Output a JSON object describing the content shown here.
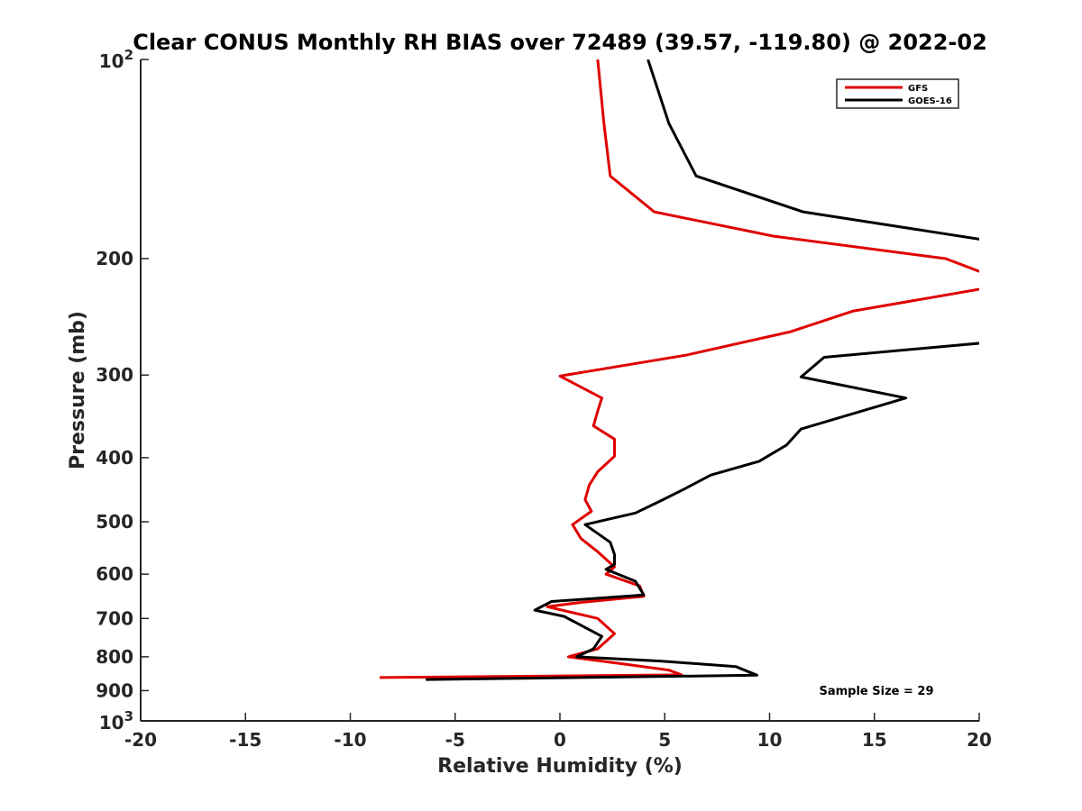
{
  "chart_data": {
    "type": "line",
    "title": "Clear CONUS Monthly RH BIAS over 72489 (39.57, -119.80) @ 2022-02",
    "xlabel": "Relative Humidity (%)",
    "ylabel": "Pressure (mb)",
    "xlim": [
      -20,
      20
    ],
    "ylim": [
      100,
      1000
    ],
    "y_scale": "log",
    "y_reversed": true,
    "x_ticks": [
      -20,
      -15,
      -10,
      -5,
      0,
      5,
      10,
      15,
      20
    ],
    "x_tick_labels": [
      "-20",
      "-15",
      "-10",
      "-5",
      "0",
      "5",
      "10",
      "15",
      "20"
    ],
    "y_ticks": [
      200,
      300,
      400,
      500,
      600,
      700,
      800,
      900
    ],
    "y_tick_labels": [
      "200",
      "300",
      "400",
      "500",
      "600",
      "700",
      "800",
      "900"
    ],
    "y_end_labels": [
      {
        "value": 100,
        "base": "10",
        "exp": "2"
      },
      {
        "value": 1000,
        "base": "10",
        "exp": "3"
      }
    ],
    "legend_position": "top-right",
    "annotation": "Sample Size = 29",
    "series": [
      {
        "name": "GFS",
        "color": "#e00000",
        "points": [
          [
            1.8,
            100
          ],
          [
            2.1,
            125
          ],
          [
            2.4,
            150
          ],
          [
            4.5,
            170
          ],
          [
            10.2,
            185
          ],
          [
            18.4,
            200
          ],
          [
            20.5,
            212
          ],
          [
            20.2,
            222
          ],
          [
            14.0,
            240
          ],
          [
            11.0,
            258
          ],
          [
            6.0,
            280
          ],
          [
            0.0,
            301
          ],
          [
            2.0,
            325
          ],
          [
            1.8,
            340
          ],
          [
            1.6,
            358
          ],
          [
            2.6,
            375
          ],
          [
            2.6,
            398
          ],
          [
            1.8,
            420
          ],
          [
            1.4,
            440
          ],
          [
            1.2,
            463
          ],
          [
            1.5,
            482
          ],
          [
            0.6,
            505
          ],
          [
            1.0,
            530
          ],
          [
            1.8,
            555
          ],
          [
            2.6,
            585
          ],
          [
            2.2,
            600
          ],
          [
            3.8,
            625
          ],
          [
            4.0,
            648
          ],
          [
            1.0,
            662
          ],
          [
            -0.6,
            672
          ],
          [
            1.8,
            700
          ],
          [
            2.6,
            738
          ],
          [
            1.8,
            778
          ],
          [
            0.4,
            800
          ],
          [
            3.0,
            820
          ],
          [
            5.2,
            838
          ],
          [
            5.8,
            852
          ],
          [
            -8.6,
            860
          ]
        ]
      },
      {
        "name": "GOES-16",
        "color": "#000000",
        "points": [
          [
            4.2,
            100
          ],
          [
            5.2,
            125
          ],
          [
            6.5,
            150
          ],
          [
            11.6,
            170
          ],
          [
            20.5,
            188
          ],
          [
            20.3,
            268
          ],
          [
            12.6,
            282
          ],
          [
            11.5,
            302
          ],
          [
            16.5,
            325
          ],
          [
            11.5,
            362
          ],
          [
            10.8,
            383
          ],
          [
            9.5,
            405
          ],
          [
            7.2,
            425
          ],
          [
            6.0,
            445
          ],
          [
            4.8,
            465
          ],
          [
            3.6,
            485
          ],
          [
            1.2,
            505
          ],
          [
            2.4,
            537
          ],
          [
            2.6,
            560
          ],
          [
            2.6,
            580
          ],
          [
            2.2,
            590
          ],
          [
            3.6,
            615
          ],
          [
            3.8,
            630
          ],
          [
            4.0,
            645
          ],
          [
            -0.4,
            660
          ],
          [
            -1.2,
            680
          ],
          [
            0.2,
            695
          ],
          [
            2.0,
            745
          ],
          [
            1.6,
            778
          ],
          [
            0.8,
            800
          ],
          [
            4.8,
            812
          ],
          [
            8.4,
            828
          ],
          [
            9.4,
            853
          ],
          [
            -6.4,
            866
          ]
        ]
      }
    ]
  }
}
